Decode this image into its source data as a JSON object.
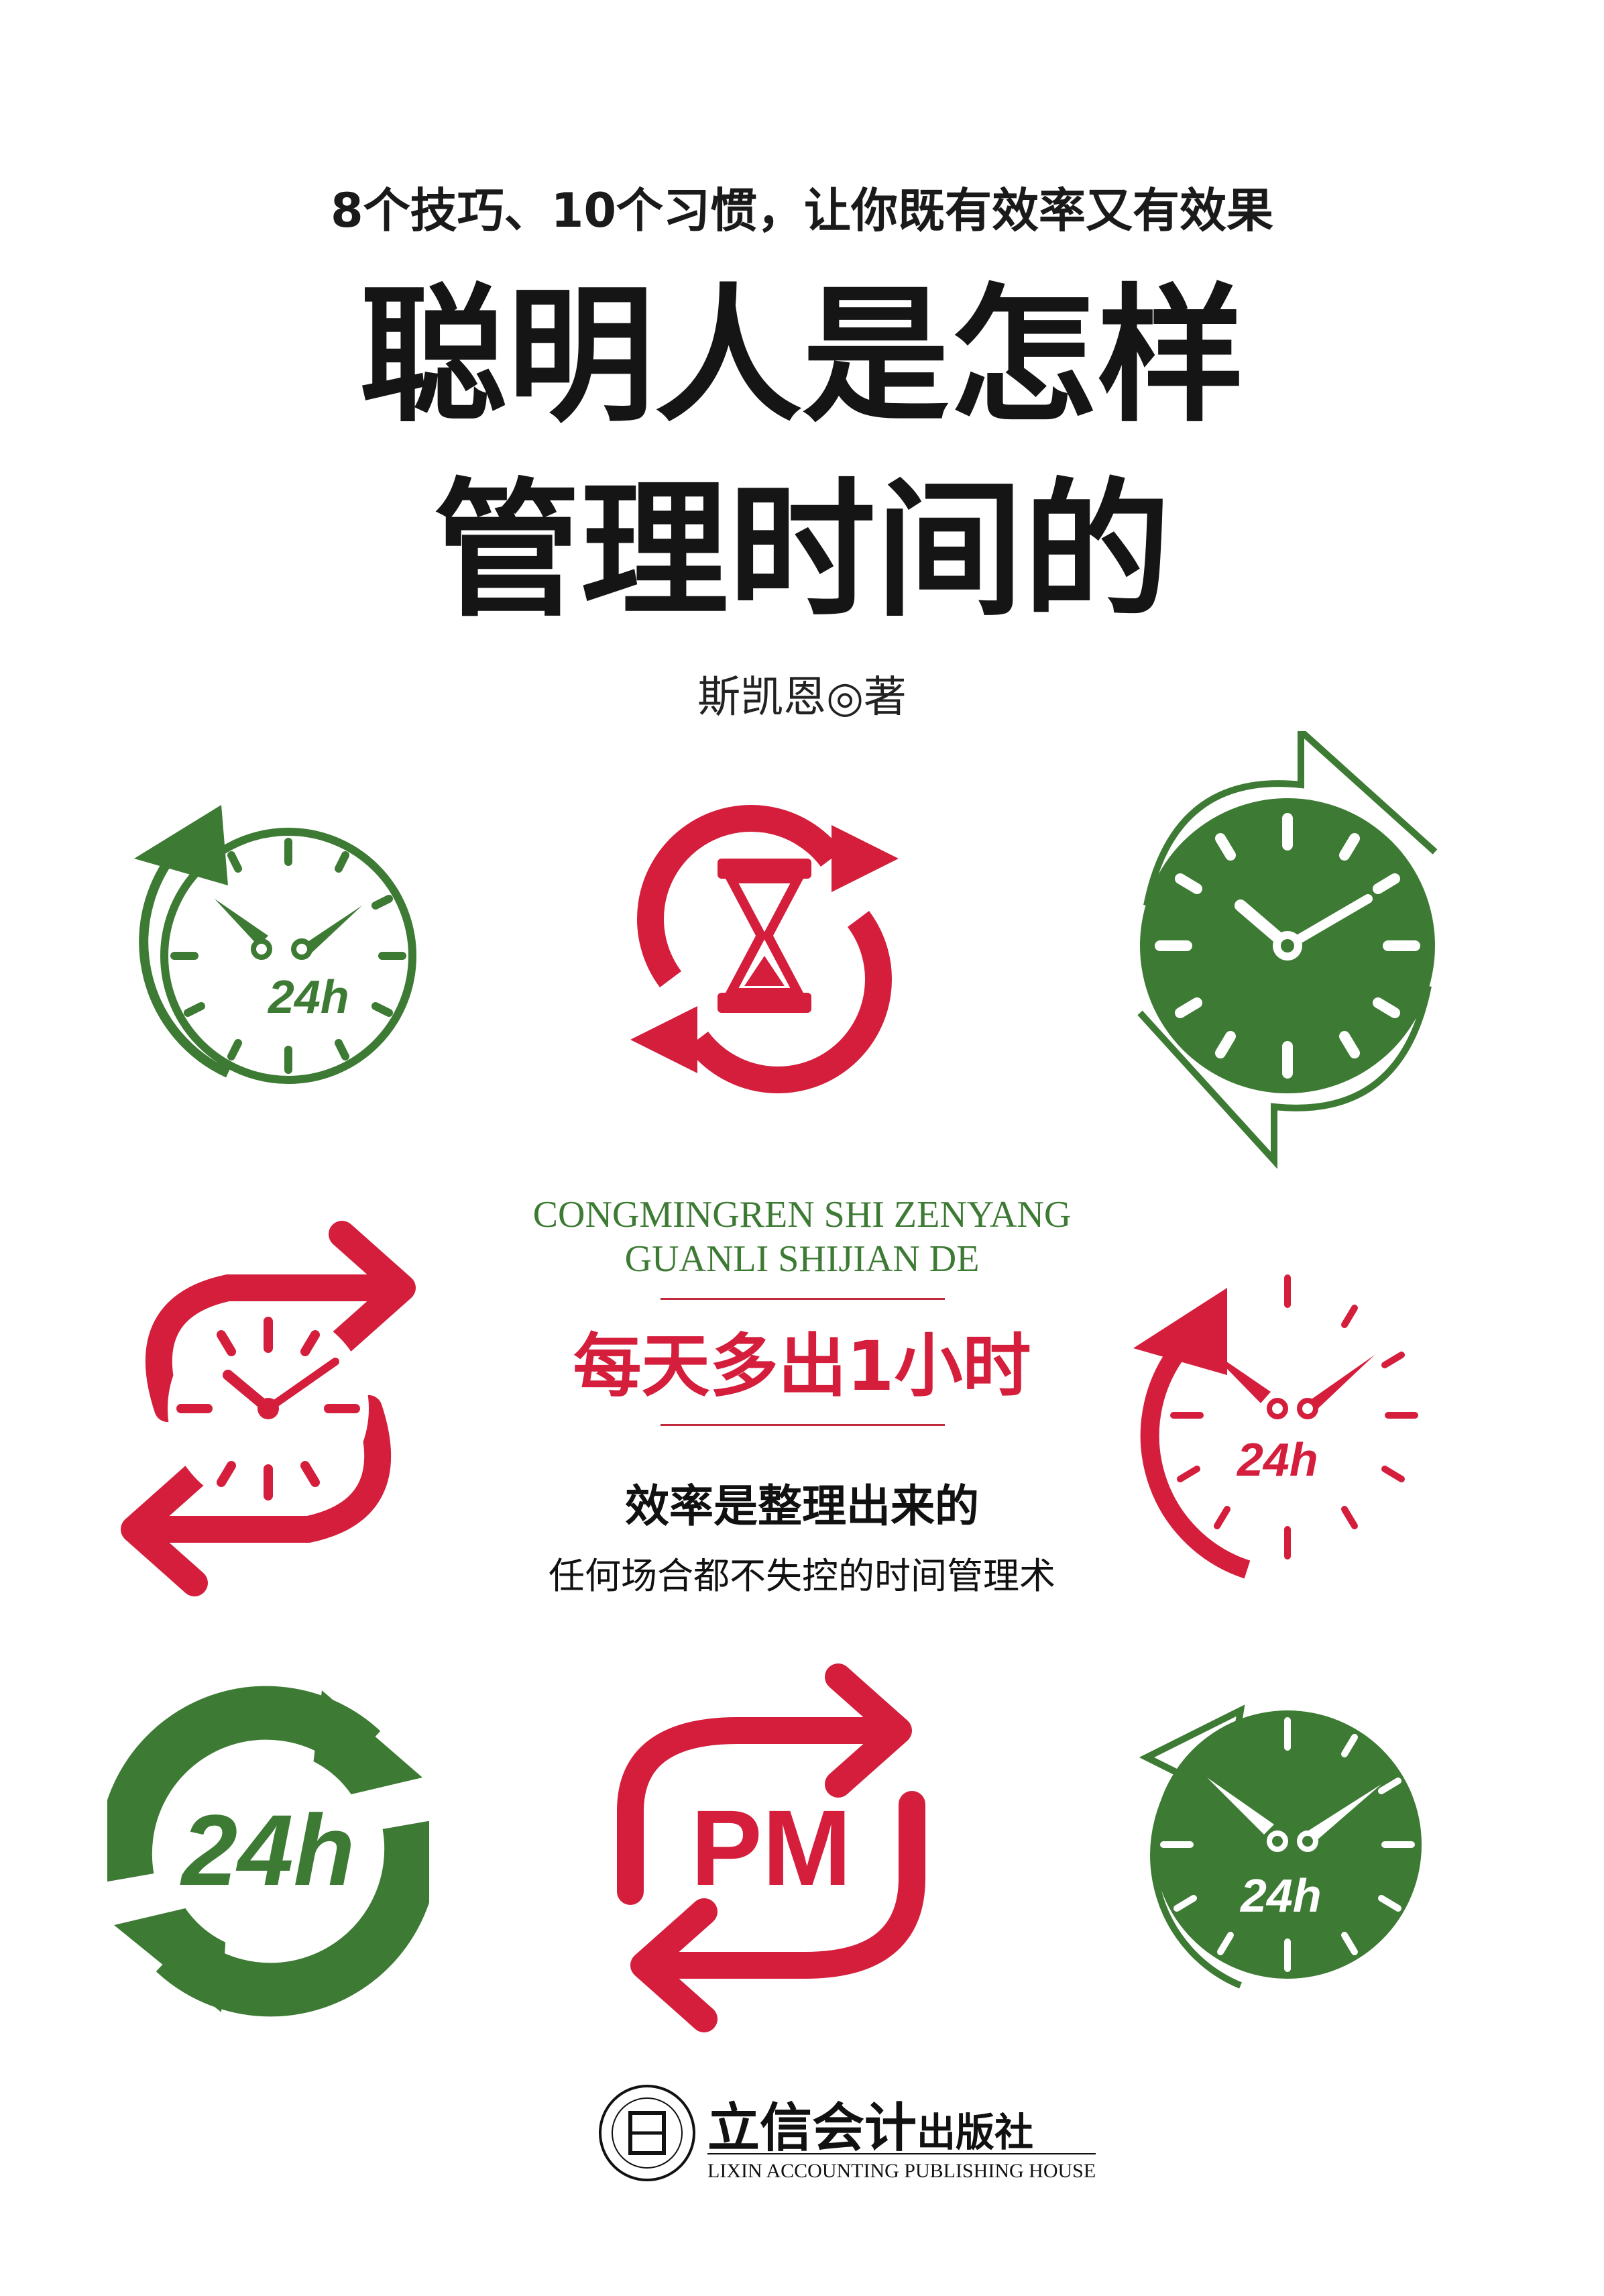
{
  "cover": {
    "tagline": "8个技巧、10个习惯，让你既有效率又有效果",
    "title_line1": "聪明人是怎样",
    "title_line2": "管理时间的",
    "author": "斯凯恩◎著",
    "pinyin_line1": "CONGMINGREN SHI ZENYANG",
    "pinyin_line2": "GUANLI SHIJIAN DE",
    "slogan": "每天多出1小时",
    "subtitle1": "效率是整理出来的",
    "subtitle2": "任何场合都不失控的时间管理术"
  },
  "publisher": {
    "name_cn": "立信会计",
    "suffix": "出版社",
    "name_en": "LIXIN ACCOUNTING PUBLISHING HOUSE"
  },
  "icons": {
    "label_24h": "24h",
    "label_pm": "PM",
    "icons_list": [
      "clock-24h-green-icon",
      "hourglass-red-icon",
      "clock-solid-green-icon",
      "clock-red-arrows-icon",
      "clock-24h-red-icon",
      "24h-green-arrows-icon",
      "pm-red-arrows-icon",
      "clock-24h-green-solid-icon"
    ]
  },
  "colors": {
    "green": "#3d7a34",
    "red": "#d41e3c",
    "text": "#151515"
  }
}
